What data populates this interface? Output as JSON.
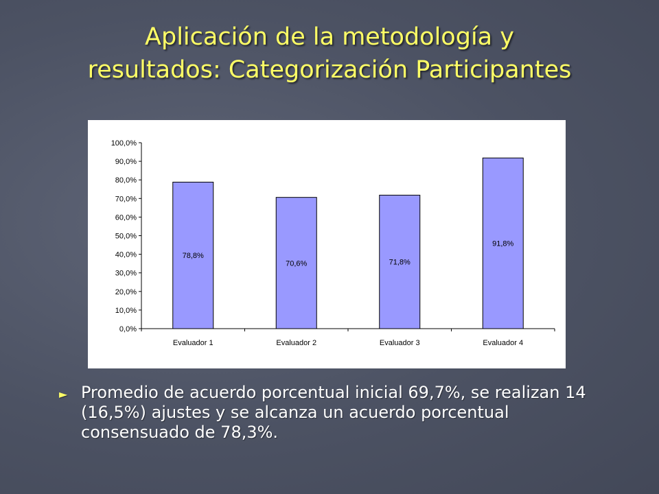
{
  "slide": {
    "title_line1": "Aplicación de la metodología y",
    "title_line2": "resultados: Categorización Participantes",
    "bullet_text": "Promedio de acuerdo porcentual inicial 69,7%, se realizan 14 (16,5%) ajustes y se alcanza un acuerdo porcentual consensuado de 78,3%.",
    "bullet_icon": "triangle-right-icon",
    "colors": {
      "title": "#ffff66",
      "bullet_marker": "#ffff66",
      "text": "#ffffff",
      "bar_fill": "#9999ff",
      "background": "#4c5263"
    }
  },
  "chart_data": {
    "type": "bar",
    "categories": [
      "Evaluador 1",
      "Evaluador 2",
      "Evaluador 3",
      "Evaluador 4"
    ],
    "values": [
      78.8,
      70.6,
      71.8,
      91.8
    ],
    "data_labels": [
      "78,8%",
      "70,6%",
      "71,8%",
      "91,8%"
    ],
    "yticks": [
      "0,0%",
      "10,0%",
      "20,0%",
      "30,0%",
      "40,0%",
      "50,0%",
      "60,0%",
      "70,0%",
      "80,0%",
      "90,0%",
      "100,0%"
    ],
    "ylim": [
      0,
      100
    ],
    "grid": false,
    "legend": "none",
    "title": "",
    "xlabel": "",
    "ylabel": ""
  }
}
